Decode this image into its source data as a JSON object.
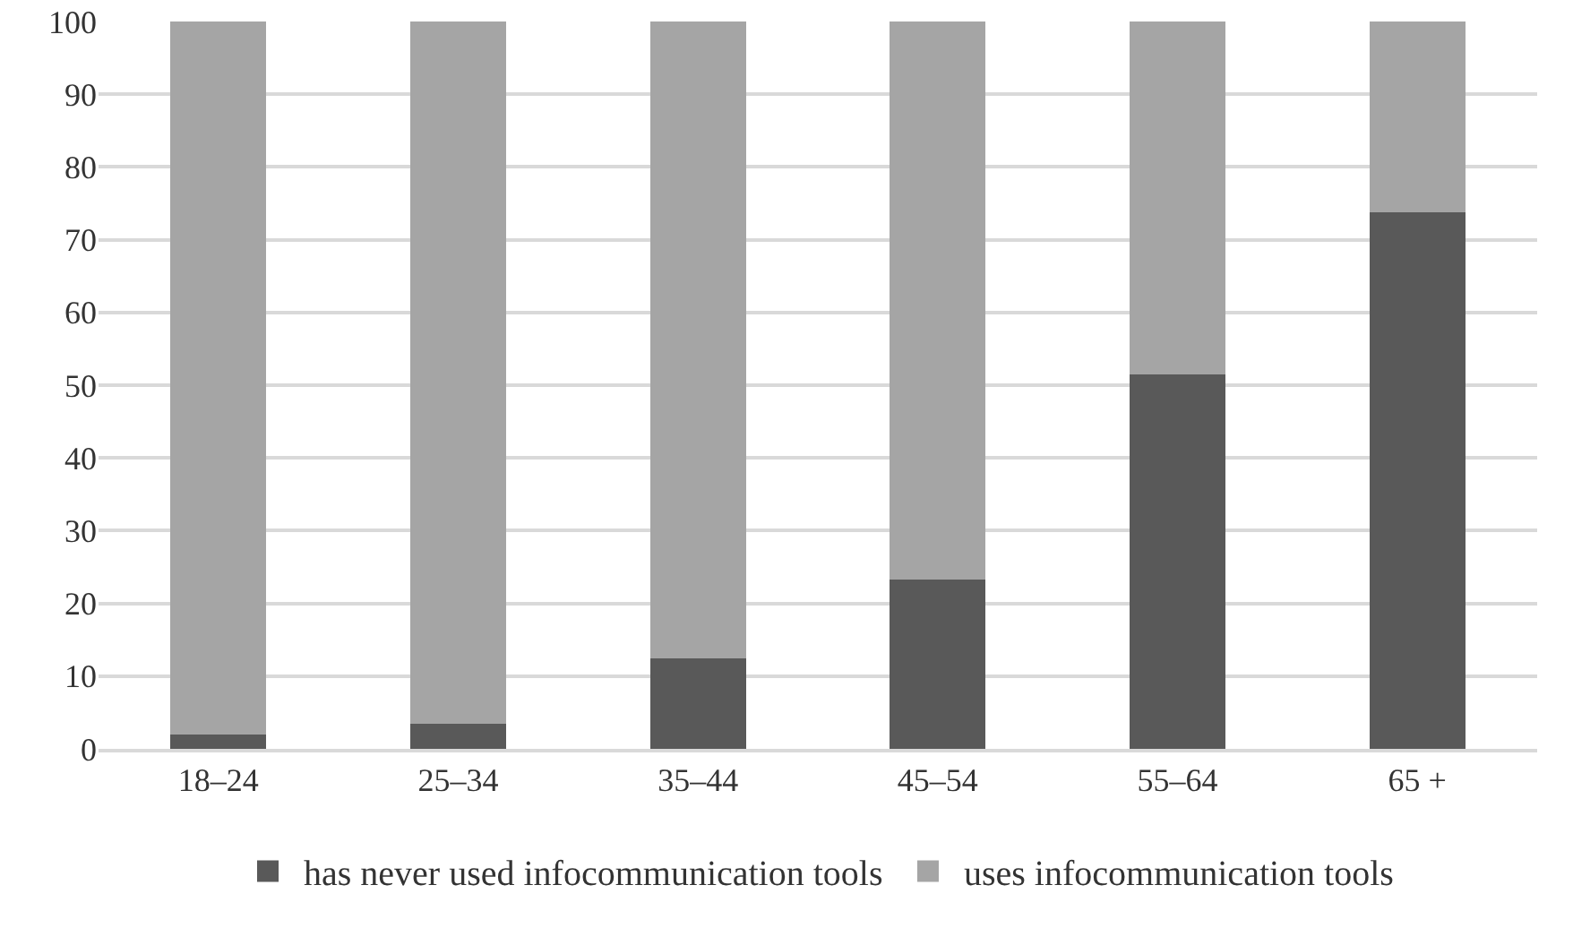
{
  "chart_data": {
    "type": "bar",
    "stacked": true,
    "categories": [
      "18–24",
      "25–34",
      "35–44",
      "45–54",
      "55–64",
      "65 +"
    ],
    "series": [
      {
        "name": "has never used infocommunication tools",
        "color": "#595959",
        "values": [
          2,
          3.5,
          12.5,
          23.3,
          51.5,
          73.8
        ]
      },
      {
        "name": "uses infocommunication tools",
        "color": "#a5a5a5",
        "values": [
          98,
          96.5,
          87.5,
          76.7,
          48.5,
          26.2
        ]
      }
    ],
    "ylim": [
      0,
      100
    ],
    "yticks": [
      0,
      10,
      20,
      30,
      40,
      50,
      60,
      70,
      80,
      90,
      100
    ],
    "grid": "y",
    "legend": "bottom"
  }
}
